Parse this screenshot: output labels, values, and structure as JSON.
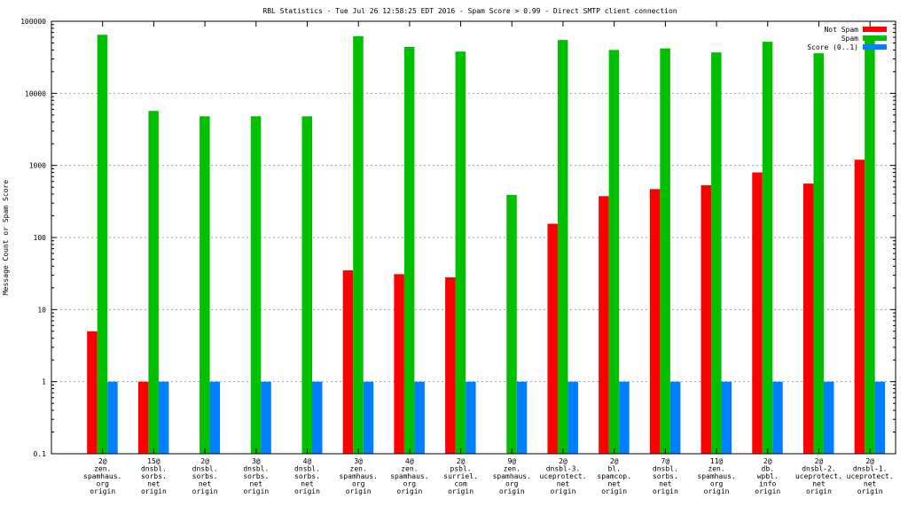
{
  "chart_data": {
    "type": "bar",
    "title": "RBL Statistics - Tue Jul 26 12:58:25 EDT 2016 - Spam Score > 0.99 - Direct SMTP client connection",
    "xlabel": "",
    "ylabel": "Message Count or Spam Score",
    "yscale": "log",
    "ylim": [
      0.1,
      100000
    ],
    "yticks": [
      "0.1",
      "1",
      "10",
      "100",
      "1000",
      "10000",
      "100000"
    ],
    "grid": true,
    "legend_position": "top-right",
    "categories": [
      [
        "2@",
        "zen.",
        "spamhaus.",
        "org",
        "origin"
      ],
      [
        "15@",
        "dnsbl.",
        "sorbs.",
        "net",
        "origin"
      ],
      [
        "2@",
        "dnsbl.",
        "sorbs.",
        "net",
        "origin"
      ],
      [
        "3@",
        "dnsbl.",
        "sorbs.",
        "net",
        "origin"
      ],
      [
        "4@",
        "dnsbl.",
        "sorbs.",
        "net",
        "origin"
      ],
      [
        "3@",
        "zen.",
        "spamhaus.",
        "org",
        "origin"
      ],
      [
        "4@",
        "zen.",
        "spamhaus.",
        "org",
        "origin"
      ],
      [
        "2@",
        "psbl.",
        "surriel.",
        "com",
        "origin"
      ],
      [
        "9@",
        "zen.",
        "spamhaus.",
        "org",
        "origin"
      ],
      [
        "2@",
        "dnsbl-3.",
        "uceprotect.",
        "net",
        "origin"
      ],
      [
        "2@",
        "bl.",
        "spamcop.",
        "net",
        "origin"
      ],
      [
        "7@",
        "dnsbl.",
        "sorbs.",
        "net",
        "origin"
      ],
      [
        "11@",
        "zen.",
        "spamhaus.",
        "org",
        "origin"
      ],
      [
        "2@",
        "db.",
        "wpbl.",
        "info",
        "origin"
      ],
      [
        "2@",
        "dnsbl-2.",
        "uceprotect.",
        "net",
        "origin"
      ],
      [
        "2@",
        "dnsbl-1.",
        "uceprotect.",
        "net",
        "origin"
      ]
    ],
    "series": [
      {
        "name": "Not Spam",
        "color": "#ff0000",
        "values": [
          5,
          1,
          null,
          null,
          null,
          35,
          31,
          28,
          null,
          155,
          375,
          470,
          530,
          800,
          560,
          1200
        ]
      },
      {
        "name": "Spam",
        "color": "#00c000",
        "values": [
          65000,
          5700,
          4800,
          4800,
          4800,
          62000,
          44000,
          38000,
          390,
          55000,
          40000,
          42000,
          37000,
          52000,
          36000,
          62000
        ]
      },
      {
        "name": "Score (0..1)",
        "color": "#0080ff",
        "values": [
          1,
          1,
          1,
          1,
          1,
          1,
          1,
          1,
          1,
          1,
          1,
          1,
          1,
          1,
          1,
          1
        ]
      }
    ]
  }
}
